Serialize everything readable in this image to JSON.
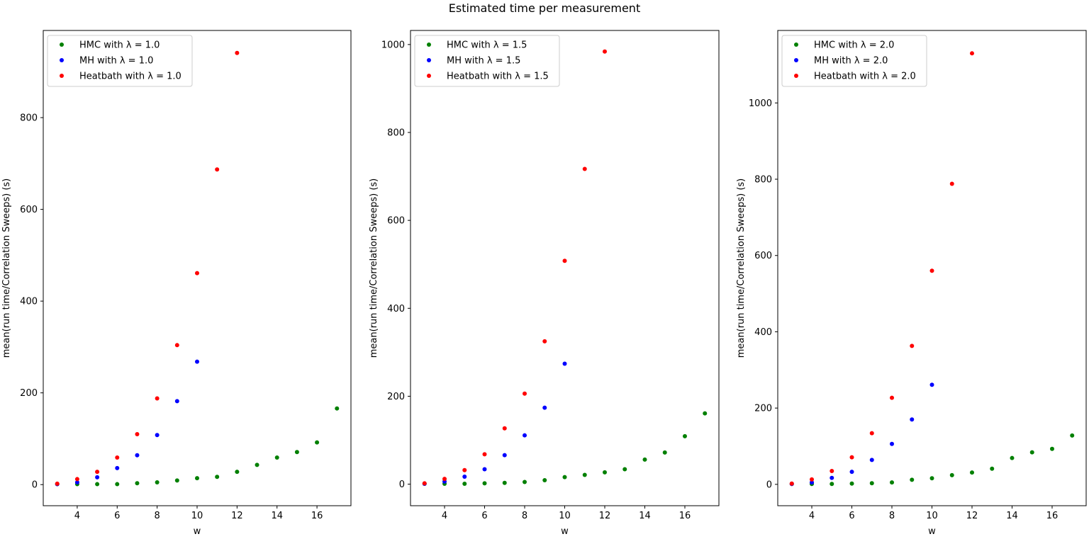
{
  "figure": {
    "title": "Estimated time per measurement"
  },
  "chart_data": [
    {
      "type": "scatter",
      "xlabel": "w",
      "ylabel": "mean(run time/Correlation Sweeps) (s)",
      "xlim": [
        2.3,
        17.7
      ],
      "ylim": [
        -46,
        990
      ],
      "xticks": [
        4,
        6,
        8,
        10,
        12,
        14,
        16
      ],
      "yticks": [
        0,
        200,
        400,
        600,
        800
      ],
      "legend_position": "upper left",
      "series": [
        {
          "name": "HMC with λ = 1.0",
          "color": "#008000",
          "x": [
            3,
            4,
            5,
            6,
            7,
            8,
            9,
            10,
            11,
            12,
            13,
            14,
            15,
            16,
            17
          ],
          "y": [
            1,
            1,
            1,
            1,
            3,
            5,
            9,
            14,
            17,
            28,
            43,
            59,
            71,
            92,
            166
          ]
        },
        {
          "name": "MH with λ = 1.0",
          "color": "#0000ff",
          "x": [
            3,
            4,
            5,
            6,
            7,
            8,
            9,
            10
          ],
          "y": [
            1,
            5,
            16,
            36,
            64,
            108,
            182,
            268
          ]
        },
        {
          "name": "Heatbath with λ = 1.0",
          "color": "#ff0000",
          "x": [
            3,
            4,
            5,
            6,
            7,
            8,
            9,
            10,
            11,
            12
          ],
          "y": [
            2,
            12,
            28,
            59,
            110,
            188,
            304,
            461,
            687,
            941
          ]
        }
      ]
    },
    {
      "type": "scatter",
      "xlabel": "w",
      "ylabel": "mean(run time/Correlation Sweeps) (s)",
      "xlim": [
        2.3,
        17.7
      ],
      "ylim": [
        -49,
        1032
      ],
      "xticks": [
        4,
        6,
        8,
        10,
        12,
        14,
        16
      ],
      "yticks": [
        0,
        200,
        400,
        600,
        800,
        1000
      ],
      "legend_position": "upper left",
      "series": [
        {
          "name": "HMC with λ = 1.5",
          "color": "#008000",
          "x": [
            3,
            4,
            5,
            6,
            7,
            8,
            9,
            10,
            11,
            12,
            13,
            14,
            15,
            16,
            17
          ],
          "y": [
            1,
            1,
            1,
            2,
            3,
            5,
            9,
            16,
            21,
            27,
            34,
            56,
            72,
            109,
            161
          ]
        },
        {
          "name": "MH with λ = 1.5",
          "color": "#0000ff",
          "x": [
            3,
            4,
            5,
            6,
            7,
            8,
            9,
            10
          ],
          "y": [
            1,
            6,
            17,
            34,
            66,
            111,
            174,
            274
          ]
        },
        {
          "name": "Heatbath with λ = 1.5",
          "color": "#ff0000",
          "x": [
            3,
            4,
            5,
            6,
            7,
            8,
            9,
            10,
            11,
            12
          ],
          "y": [
            2,
            12,
            32,
            68,
            127,
            206,
            325,
            508,
            717,
            984
          ]
        }
      ]
    },
    {
      "type": "scatter",
      "xlabel": "w",
      "ylabel": "mean(run time/Correlation Sweeps) (s)",
      "xlim": [
        2.3,
        17.7
      ],
      "ylim": [
        -56,
        1190
      ],
      "xticks": [
        4,
        6,
        8,
        10,
        12,
        14,
        16
      ],
      "yticks": [
        0,
        200,
        400,
        600,
        800,
        1000
      ],
      "legend_position": "upper left",
      "series": [
        {
          "name": "HMC with λ = 2.0",
          "color": "#008000",
          "x": [
            3,
            4,
            5,
            6,
            7,
            8,
            9,
            10,
            11,
            12,
            13,
            14,
            15,
            16,
            17
          ],
          "y": [
            1,
            1,
            1,
            2,
            3,
            5,
            12,
            16,
            24,
            31,
            41,
            69,
            84,
            93,
            128
          ]
        },
        {
          "name": "MH with λ = 2.0",
          "color": "#0000ff",
          "x": [
            3,
            4,
            5,
            6,
            7,
            8,
            9,
            10
          ],
          "y": [
            1,
            5,
            17,
            33,
            64,
            106,
            170,
            261
          ]
        },
        {
          "name": "Heatbath with λ = 2.0",
          "color": "#ff0000",
          "x": [
            3,
            4,
            5,
            6,
            7,
            8,
            9,
            10,
            11,
            12
          ],
          "y": [
            2,
            13,
            35,
            71,
            134,
            227,
            363,
            560,
            788,
            1130
          ]
        }
      ]
    }
  ]
}
